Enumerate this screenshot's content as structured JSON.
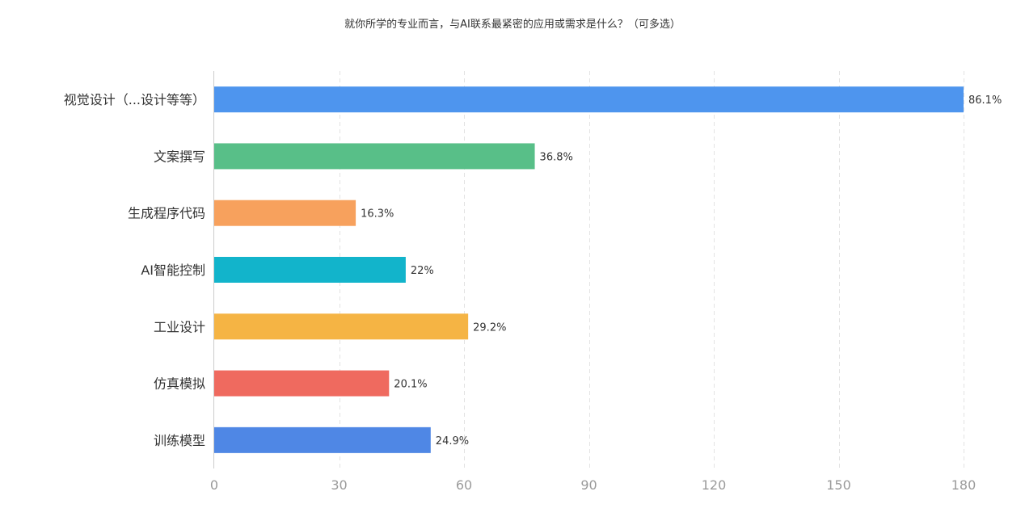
{
  "chart_data": {
    "type": "bar",
    "orientation": "horizontal",
    "title": "就你所学的专业而言，与AI联系最紧密的应用或需求是什么？（可多选）",
    "xlabel": "",
    "ylabel": "",
    "xlim": [
      0,
      180
    ],
    "ticks": [
      0,
      30,
      60,
      90,
      120,
      150,
      180
    ],
    "grid": "vertical dashed",
    "categories": [
      "视觉设计（...设计等等）",
      "文案撰写",
      "生成程序代码",
      "AI智能控制",
      "工业设计",
      "仿真模拟",
      "训练模型"
    ],
    "values": [
      180,
      77,
      34,
      46,
      61,
      42,
      52
    ],
    "labels": [
      "86.1%",
      "36.8%",
      "16.3%",
      "22%",
      "29.2%",
      "20.1%",
      "24.9%"
    ],
    "colors": [
      "#4e95ee",
      "#58bf88",
      "#f7a15d",
      "#12b4cb",
      "#f5b444",
      "#ef6a5f",
      "#4f87e5"
    ]
  }
}
